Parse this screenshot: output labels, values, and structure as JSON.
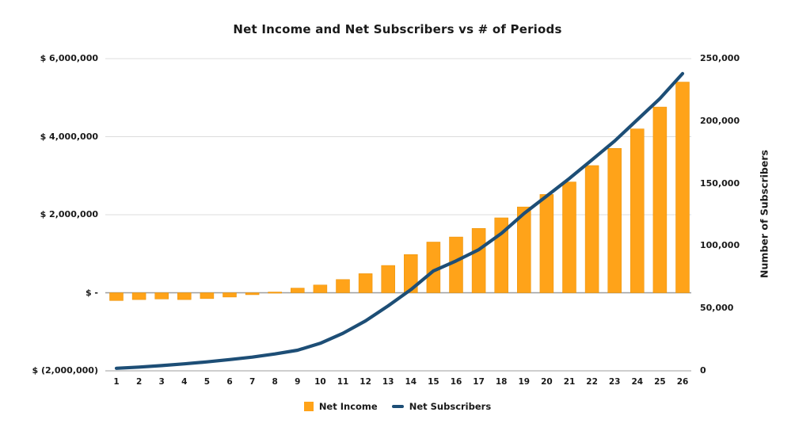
{
  "title": "Net Income and Net Subscribers vs # of Periods",
  "legend": {
    "items": [
      "Net Income",
      "Net Subscribers"
    ]
  },
  "colors": {
    "net_income_bar": "#FFA319",
    "net_income_bar_edge": "#EA8F00",
    "net_subscribers_line": "#1D4E76",
    "gridline": "#DCDCDC",
    "zero_line": "#9E9E9E",
    "axis_line": "#BDBDBD",
    "text": "#1a1a1a"
  },
  "chart_data": {
    "type": "bar",
    "subtype": "combo-bar-line",
    "title": "Net Income and Net Subscribers vs # of Periods",
    "x": [
      1,
      2,
      3,
      4,
      5,
      6,
      7,
      8,
      9,
      10,
      11,
      12,
      13,
      14,
      15,
      16,
      17,
      18,
      19,
      20,
      21,
      22,
      23,
      24,
      25,
      26
    ],
    "xlabel": "",
    "grid": true,
    "legend_position": "bottom",
    "series": [
      {
        "name": "Net Income",
        "type": "bar",
        "axis": "left",
        "color": "#FFA319",
        "values": [
          -200000,
          -175000,
          -160000,
          -175000,
          -150000,
          -110000,
          -50000,
          20000,
          120000,
          200000,
          340000,
          490000,
          700000,
          980000,
          1300000,
          1430000,
          1650000,
          1920000,
          2200000,
          2520000,
          2840000,
          3260000,
          3700000,
          4200000,
          4760000,
          5400000
        ]
      },
      {
        "name": "Net Subscribers",
        "type": "line",
        "axis": "right",
        "color": "#1D4E76",
        "values": [
          2000,
          3000,
          4200,
          5600,
          7200,
          9000,
          11000,
          13500,
          16500,
          22000,
          30000,
          40000,
          52000,
          65000,
          80000,
          88000,
          97000,
          110000,
          126000,
          140000,
          154000,
          169000,
          184000,
          201000,
          218000,
          238000
        ]
      }
    ],
    "left_axis": {
      "title": "",
      "ticks": [
        6000000,
        4000000,
        2000000,
        0,
        -2000000
      ],
      "tick_labels": [
        "$ 6,000,000",
        "$ 4,000,000",
        "$ 2,000,000",
        "$ -",
        "$ (2,000,000)"
      ],
      "range": [
        -2000000,
        6000000
      ]
    },
    "right_axis": {
      "title": "Number of Subscribers",
      "ticks": [
        250000,
        200000,
        150000,
        100000,
        50000,
        0
      ],
      "tick_labels": [
        "250,000",
        "200,000",
        "150,000",
        "100,000",
        "50,000",
        "0"
      ],
      "range": [
        0,
        250000
      ]
    }
  }
}
